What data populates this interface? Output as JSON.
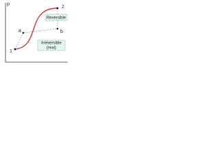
{
  "axis": {
    "label": "p"
  },
  "points": [
    {
      "label": "1"
    },
    {
      "label": "2"
    },
    {
      "label": "a"
    },
    {
      "label": "b"
    }
  ],
  "annotations": {
    "reversible": "Reversible",
    "irreversible": [
      "Irreversible",
      "(real)"
    ]
  }
}
